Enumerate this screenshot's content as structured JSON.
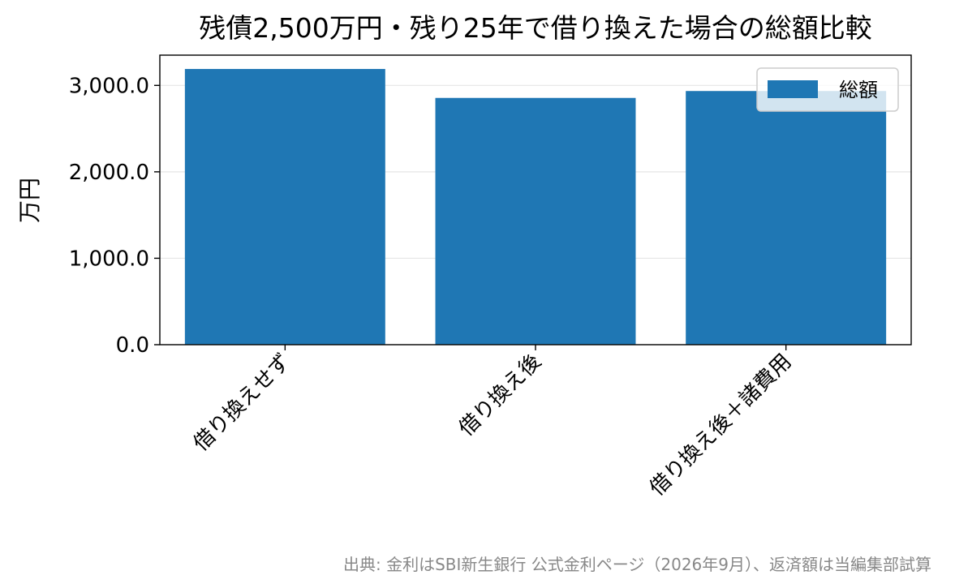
{
  "chart_data": {
    "type": "bar",
    "title": "残債2,500万円・残り25年で借り換えた場合の総額比較",
    "ylabel": "万円",
    "xlabel": "",
    "categories": [
      "借り換えせず",
      "借り換え後",
      "借り換え後＋諸費用"
    ],
    "series": [
      {
        "name": "総額",
        "values": [
          3190,
          2855,
          2935
        ]
      }
    ],
    "ylim": [
      0,
      3350
    ],
    "yticks": [
      0,
      1000,
      2000,
      3000
    ],
    "ytick_labels": [
      "0.0",
      "1,000.0",
      "2,000.0",
      "3,000.0"
    ],
    "grid": "y",
    "legend": "top-right",
    "colors": {
      "bar": "#1f77b4",
      "grid": "#e6e6e6"
    }
  },
  "source_note": "出典: 金利はSBI新生銀行 公式金利ページ（2026年9月）、返済額は当編集部試算"
}
